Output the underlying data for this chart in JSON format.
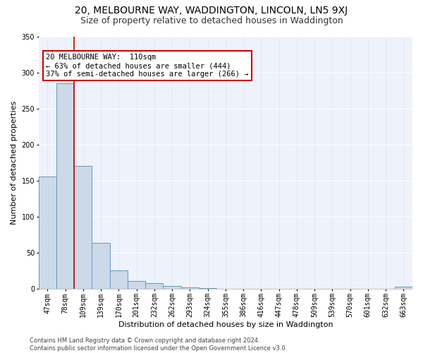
{
  "title1": "20, MELBOURNE WAY, WADDINGTON, LINCOLN, LN5 9XJ",
  "title2": "Size of property relative to detached houses in Waddington",
  "xlabel": "Distribution of detached houses by size in Waddington",
  "ylabel": "Number of detached properties",
  "categories": [
    "47sqm",
    "78sqm",
    "109sqm",
    "139sqm",
    "170sqm",
    "201sqm",
    "232sqm",
    "262sqm",
    "293sqm",
    "324sqm",
    "355sqm",
    "386sqm",
    "416sqm",
    "447sqm",
    "478sqm",
    "509sqm",
    "539sqm",
    "570sqm",
    "601sqm",
    "632sqm",
    "663sqm"
  ],
  "values": [
    155,
    285,
    170,
    63,
    25,
    10,
    7,
    4,
    2,
    1,
    0,
    0,
    0,
    0,
    0,
    0,
    0,
    0,
    0,
    0,
    3
  ],
  "bar_color": "#ccd9e8",
  "bar_edge_color": "#6699bb",
  "vline_color": "#cc0000",
  "vline_pos": 1.5,
  "annotation_line1": "20 MELBOURNE WAY:  110sqm",
  "annotation_line2": "← 63% of detached houses are smaller (444)",
  "annotation_line3": "37% of semi-detached houses are larger (266) →",
  "annotation_box_facecolor": "#ffffff",
  "annotation_box_edgecolor": "#cc0000",
  "ylim": [
    0,
    350
  ],
  "yticks": [
    0,
    50,
    100,
    150,
    200,
    250,
    300,
    350
  ],
  "grid_color": "#ffffff",
  "grid_color_x": "#dde4f0",
  "background_color": "#eef2fa",
  "footer": "Contains HM Land Registry data © Crown copyright and database right 2024.\nContains public sector information licensed under the Open Government Licence v3.0.",
  "title1_fontsize": 10,
  "title2_fontsize": 9,
  "xlabel_fontsize": 8,
  "ylabel_fontsize": 8,
  "tick_fontsize": 7,
  "annotation_fontsize": 7.5,
  "footer_fontsize": 6
}
